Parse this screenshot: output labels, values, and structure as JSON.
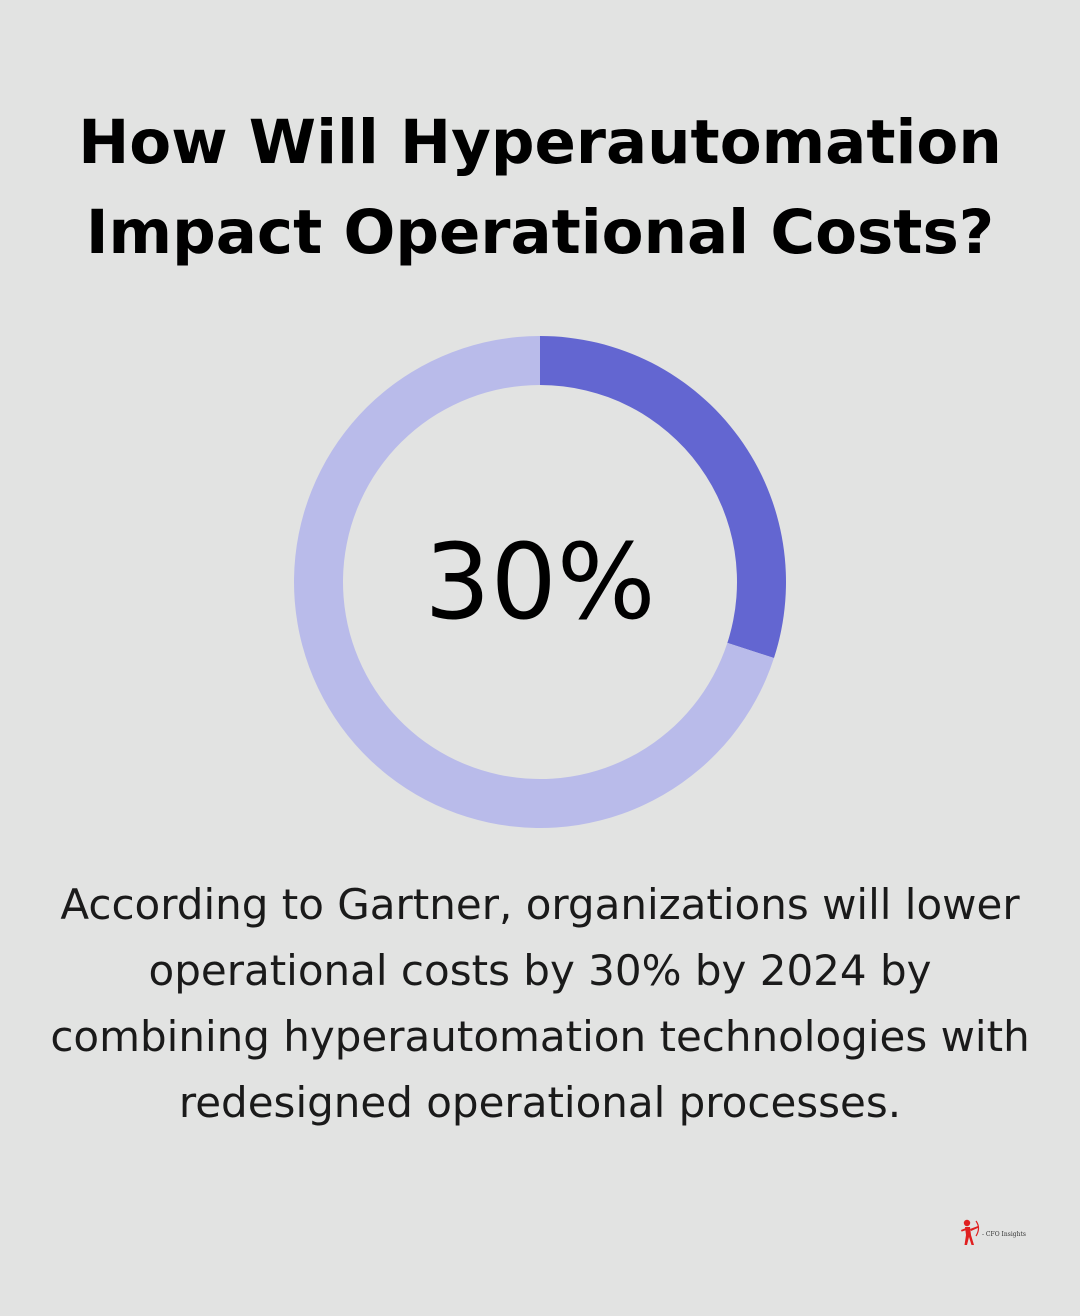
{
  "title": {
    "line1": "How Will Hyperautomation",
    "line2": "Impact Operational Costs?"
  },
  "chart_data": {
    "type": "pie",
    "variant": "donut",
    "value_label": "30%",
    "slices": [
      {
        "value": 30,
        "color": "#6366d1"
      },
      {
        "value": 70,
        "color": "#b9bbea"
      }
    ]
  },
  "description": {
    "line1": "According to Gartner, organizations will lower",
    "line2": "operational costs by 30% by 2024 by",
    "line3": "combining hyperautomation technologies with",
    "line4": "redesigned operational processes."
  },
  "logo": {
    "text": "- CFO Insights",
    "icon": "archer-icon",
    "color": "#e02020"
  },
  "colors": {
    "background": "#e2e3e2",
    "accent": "#6366d1",
    "track": "#b9bbea"
  }
}
